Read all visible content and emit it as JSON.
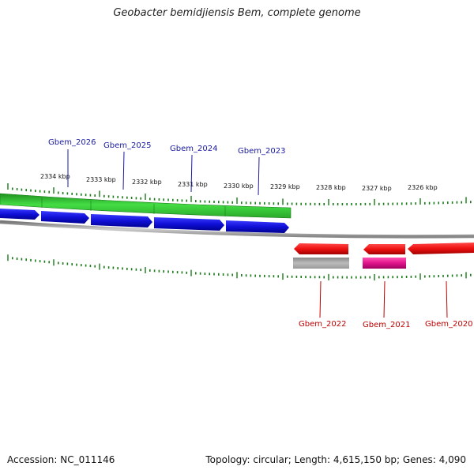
{
  "title": "Geobacter bemidjiensis Bem, complete genome",
  "footer": {
    "accession": "Accession: NC_011146",
    "summary": "Topology: circular; Length: 4,615,150 bp; Genes: 4,090"
  },
  "kbp_labels": [
    "2334 kbp",
    "2333 kbp",
    "2332 kbp",
    "2331 kbp",
    "2330 kbp",
    "2329 kbp",
    "2328 kbp",
    "2327 kbp",
    "2326 kbp"
  ],
  "forward_genes": [
    "Gbem_2026",
    "Gbem_2025",
    "Gbem_2024",
    "Gbem_2023"
  ],
  "reverse_genes": [
    "Gbem_2022",
    "Gbem_2021",
    "Gbem_2020"
  ],
  "colors": {
    "cds_forward": "#1010d8",
    "cds_reverse": "#ee1111",
    "gene_track": "#33cc33",
    "rrna": "#aaaaaa",
    "trna": "#e0148c",
    "backbone": "#888888",
    "ticks": "#1a7a1a"
  }
}
